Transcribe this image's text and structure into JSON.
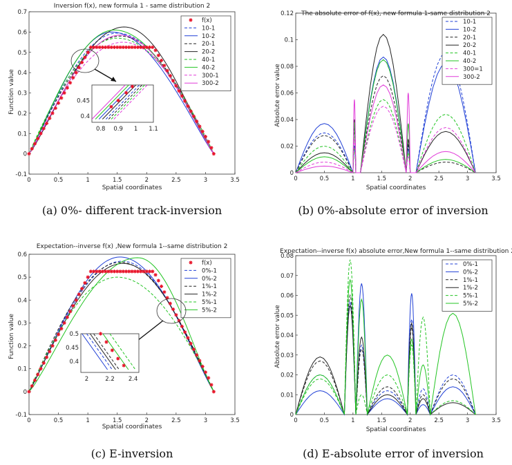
{
  "chart_data": [
    {
      "id": "a",
      "type": "line",
      "title": "Inversion f(x), new formula 1 - same distribution 2",
      "xlabel": "Spatial coordinates",
      "ylabel": "Function value",
      "caption": "(a) 0%- different track-inversion",
      "xlim": [
        0,
        3.5
      ],
      "ylim": [
        -0.1,
        0.7
      ],
      "xticks": [
        "0",
        "0.5",
        "1",
        "1.5",
        "2",
        "2.5",
        "3",
        "3.5"
      ],
      "yticks": [
        "-0.1",
        "0",
        "0.1",
        "0.2",
        "0.3",
        "0.4",
        "0.5",
        "0.6",
        "0.7"
      ],
      "legend": "top-right",
      "reference": {
        "name": "f(x)",
        "color": "#e8152a",
        "marker": "star",
        "x": [
          0,
          0.05,
          0.1,
          0.15,
          0.2,
          0.25,
          0.3,
          0.35,
          0.4,
          0.45,
          0.5,
          0.55,
          0.6,
          0.65,
          0.7,
          0.75,
          0.8,
          0.85,
          0.9,
          0.95,
          1.0,
          1.05,
          1.1,
          1.15,
          1.2,
          1.25,
          1.3,
          1.35,
          1.4,
          1.45,
          1.5,
          1.55,
          1.6,
          1.65,
          1.7,
          1.75,
          1.8,
          1.85,
          1.9,
          1.95,
          2.0,
          2.05,
          2.1,
          2.15,
          2.2,
          2.25,
          2.3,
          2.35,
          2.4,
          2.45,
          2.5,
          2.55,
          2.6,
          2.65,
          2.7,
          2.75,
          2.8,
          2.85,
          2.9,
          2.95,
          3.0,
          3.05,
          3.1,
          3.14
        ],
        "y": [
          0,
          0.025,
          0.05,
          0.075,
          0.1,
          0.125,
          0.15,
          0.175,
          0.2,
          0.225,
          0.25,
          0.275,
          0.3,
          0.325,
          0.35,
          0.375,
          0.4,
          0.425,
          0.45,
          0.475,
          0.5,
          0.525,
          0.525,
          0.525,
          0.525,
          0.525,
          0.525,
          0.525,
          0.525,
          0.525,
          0.525,
          0.525,
          0.525,
          0.525,
          0.525,
          0.525,
          0.525,
          0.525,
          0.525,
          0.525,
          0.525,
          0.525,
          0.525,
          0.51,
          0.485,
          0.46,
          0.435,
          0.41,
          0.385,
          0.36,
          0.335,
          0.31,
          0.285,
          0.26,
          0.235,
          0.21,
          0.185,
          0.16,
          0.135,
          0.11,
          0.085,
          0.06,
          0.03,
          0
        ]
      },
      "series": [
        {
          "name": "10-1",
          "color": "#1f3fd6",
          "dash": "dash",
          "peak_x": 1.5,
          "peak_y": 0.595
        },
        {
          "name": "10-2",
          "color": "#1f3fd6",
          "dash": "solid",
          "peak_x": 1.4,
          "peak_y": 0.6
        },
        {
          "name": "20-1",
          "color": "#222222",
          "dash": "dash",
          "peak_x": 1.55,
          "peak_y": 0.58
        },
        {
          "name": "20-2",
          "color": "#222222",
          "dash": "solid",
          "peak_x": 1.62,
          "peak_y": 0.625
        },
        {
          "name": "40-1",
          "color": "#22c422",
          "dash": "dash",
          "peak_x": 1.5,
          "peak_y": 0.57
        },
        {
          "name": "40-2",
          "color": "#22c422",
          "dash": "solid",
          "peak_x": 1.45,
          "peak_y": 0.61
        },
        {
          "name": "300-1",
          "color": "#e03ad8",
          "dash": "dash",
          "peak_x": 1.6,
          "peak_y": 0.55
        },
        {
          "name": "300-2",
          "color": "#e03ad8",
          "dash": "solid",
          "peak_x": 1.55,
          "peak_y": 0.585
        }
      ],
      "inset": {
        "xlim": [
          0.75,
          1.1
        ],
        "ylim": [
          0.38,
          0.5
        ],
        "xticks": [
          "0.8",
          "0.9",
          "1",
          "1.1"
        ],
        "yticks": [
          "0.4",
          "0.45"
        ]
      }
    },
    {
      "id": "b",
      "type": "line",
      "title": "The absolute error of f(x), new formula 1-same distribution 2",
      "xlabel": "Spatial coordinates",
      "ylabel": "Absolute error value",
      "caption": "(b) 0%-absolute error of inversion",
      "xlim": [
        0,
        3.5
      ],
      "ylim": [
        0,
        0.12
      ],
      "xticks": [
        "0",
        "0.5",
        "1",
        "1.5",
        "2",
        "2.5",
        "3",
        "3.5"
      ],
      "yticks": [
        "0",
        "0.02",
        "0.04",
        "0.06",
        "0.08",
        "0.1",
        "0.12"
      ],
      "legend": "top-right",
      "zeros": [
        0,
        1.0,
        1.05,
        1.13,
        1.93,
        2.0,
        2.05,
        2.1,
        3.14
      ],
      "series": [
        {
          "name": "10-1",
          "color": "#1f3fd6",
          "dash": "dash",
          "peaks": [
            0.03,
            0.035,
            0.0,
            0.085,
            0.02,
            0.0,
            0.0,
            0.09
          ]
        },
        {
          "name": "10-2",
          "color": "#1f3fd6",
          "dash": "solid",
          "peaks": [
            0.037,
            0.02,
            0.0,
            0.087,
            0.018,
            0.0,
            0.0,
            0.082
          ]
        },
        {
          "name": "20-1",
          "color": "#222222",
          "dash": "dash",
          "peaks": [
            0.028,
            0.033,
            0.0,
            0.073,
            0.022,
            0.0,
            0.0,
            0.008
          ]
        },
        {
          "name": "20-2",
          "color": "#222222",
          "dash": "solid",
          "peaks": [
            0.015,
            0.04,
            0.0,
            0.104,
            0.025,
            0.0,
            0.0,
            0.031
          ]
        },
        {
          "name": "40-1",
          "color": "#22c422",
          "dash": "dash",
          "peaks": [
            0.02,
            0.018,
            0.0,
            0.055,
            0.015,
            0.0,
            0.0,
            0.044
          ]
        },
        {
          "name": "40-2",
          "color": "#22c422",
          "dash": "solid",
          "peaks": [
            0.012,
            0.038,
            0.0,
            0.085,
            0.037,
            0.0,
            0.0,
            0.01
          ]
        },
        {
          "name": "300=1",
          "color": "#e03ad8",
          "dash": "dash",
          "peaks": [
            0.008,
            0.025,
            0.0,
            0.05,
            0.012,
            0.0,
            0.0,
            0.034
          ]
        },
        {
          "name": "300-2",
          "color": "#e03ad8",
          "dash": "solid",
          "peaks": [
            0.005,
            0.055,
            0.0,
            0.066,
            0.06,
            0.0,
            0.0,
            0.016
          ]
        }
      ]
    },
    {
      "id": "c",
      "type": "line",
      "title": "Expectation--inverse f(x) ,New formula 1--same distribution 2",
      "xlabel": "Spatial coordinates",
      "ylabel": "Function value",
      "caption": "(c) E-inversion",
      "xlim": [
        0,
        3.5
      ],
      "ylim": [
        -0.1,
        0.6
      ],
      "xticks": [
        "0",
        "0.5",
        "1",
        "1.5",
        "2",
        "2.5",
        "3",
        "3.5"
      ],
      "yticks": [
        "-0.1",
        "0",
        "0.1",
        "0.2",
        "0.3",
        "0.4",
        "0.5",
        "0.6"
      ],
      "legend": "top-right",
      "reference_name": "f(x)",
      "series": [
        {
          "name": "0%-1",
          "color": "#1f3fd6",
          "dash": "dash",
          "peak_x": 1.58,
          "peak_y": 0.57
        },
        {
          "name": "0%-2",
          "color": "#1f3fd6",
          "dash": "solid",
          "peak_x": 1.55,
          "peak_y": 0.588
        },
        {
          "name": "1%-1",
          "color": "#222222",
          "dash": "dash",
          "peak_x": 1.55,
          "peak_y": 0.565
        },
        {
          "name": "1%-2",
          "color": "#222222",
          "dash": "solid",
          "peak_x": 1.6,
          "peak_y": 0.56
        },
        {
          "name": "5%-1",
          "color": "#22c422",
          "dash": "dash",
          "peak_x": 1.5,
          "peak_y": 0.5
        },
        {
          "name": "5%-2",
          "color": "#22c422",
          "dash": "solid",
          "peak_x": 1.85,
          "peak_y": 0.585
        }
      ],
      "inset": {
        "xlim": [
          1.95,
          2.45
        ],
        "ylim": [
          0.36,
          0.5
        ],
        "xticks": [
          "2",
          "2.2",
          "2.4"
        ],
        "yticks": [
          "0.4",
          "0.45",
          "0.5"
        ]
      }
    },
    {
      "id": "d",
      "type": "line",
      "title": "Expectation--inverse f(x) absolute error,New formula 1--same distribution 2",
      "xlabel": "Spatial coordinates",
      "ylabel": "Absolute error value",
      "caption": "(d) E-absolute error of inversion",
      "xlim": [
        0,
        3.5
      ],
      "ylim": [
        0,
        0.08
      ],
      "xticks": [
        "0",
        "0.5",
        "1",
        "1.5",
        "2",
        "2.5",
        "3",
        "3.5"
      ],
      "yticks": [
        "0",
        "0.01",
        "0.02",
        "0.03",
        "0.04",
        "0.05",
        "0.06",
        "0.07",
        "0.08"
      ],
      "legend": "top-right",
      "zeros": [
        0,
        0.85,
        1.05,
        1.25,
        1.95,
        2.1,
        2.35,
        3.14
      ],
      "series": [
        {
          "name": "0%-1",
          "color": "#1f3fd6",
          "dash": "dash",
          "peaks": [
            0.02,
            0.057,
            0.035,
            0.012,
            0.048,
            0.013,
            0.02
          ]
        },
        {
          "name": "0%-2",
          "color": "#1f3fd6",
          "dash": "solid",
          "peaks": [
            0.012,
            0.055,
            0.066,
            0.008,
            0.061,
            0.005,
            0.014
          ]
        },
        {
          "name": "1%-1",
          "color": "#222222",
          "dash": "dash",
          "peaks": [
            0.027,
            0.06,
            0.033,
            0.014,
            0.044,
            0.01,
            0.018
          ]
        },
        {
          "name": "1%-2",
          "color": "#222222",
          "dash": "solid",
          "peaks": [
            0.029,
            0.055,
            0.039,
            0.01,
            0.046,
            0.008,
            0.006
          ]
        },
        {
          "name": "5%-1",
          "color": "#22c422",
          "dash": "dash",
          "peaks": [
            0.018,
            0.078,
            0.01,
            0.02,
            0.035,
            0.049,
            0.007
          ]
        },
        {
          "name": "5%-2",
          "color": "#22c422",
          "dash": "solid",
          "peaks": [
            0.02,
            0.068,
            0.058,
            0.03,
            0.038,
            0.025,
            0.051
          ]
        }
      ]
    }
  ]
}
